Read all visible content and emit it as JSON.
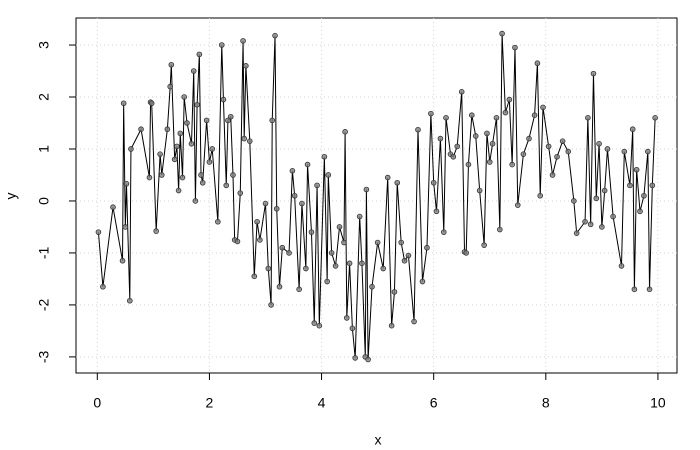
{
  "chart_data": {
    "type": "line",
    "xlabel": "x",
    "ylabel": "y",
    "color": "#000000",
    "marker_color": "#808080",
    "grid": true,
    "xlim": [
      -0.38,
      10.34
    ],
    "xticks": [
      0,
      2,
      4,
      6,
      8,
      10
    ],
    "ylim": [
      -3.31,
      3.52
    ],
    "yticks": [
      -3,
      -2,
      -1,
      0,
      1,
      2,
      3
    ],
    "x": [
      0.02,
      0.1,
      0.28,
      0.45,
      0.47,
      0.5,
      0.52,
      0.58,
      0.6,
      0.78,
      0.93,
      0.95,
      0.97,
      1.05,
      1.12,
      1.15,
      1.25,
      1.3,
      1.32,
      1.38,
      1.42,
      1.45,
      1.48,
      1.52,
      1.55,
      1.6,
      1.68,
      1.72,
      1.75,
      1.78,
      1.82,
      1.85,
      1.88,
      1.95,
      2.0,
      2.05,
      2.15,
      2.22,
      2.25,
      2.3,
      2.33,
      2.38,
      2.42,
      2.45,
      2.5,
      2.55,
      2.6,
      2.62,
      2.65,
      2.72,
      2.8,
      2.85,
      2.9,
      3.0,
      3.05,
      3.1,
      3.12,
      3.17,
      3.2,
      3.25,
      3.3,
      3.42,
      3.48,
      3.52,
      3.6,
      3.65,
      3.72,
      3.75,
      3.82,
      3.87,
      3.92,
      3.96,
      4.05,
      4.1,
      4.12,
      4.18,
      4.25,
      4.32,
      4.4,
      4.42,
      4.45,
      4.5,
      4.55,
      4.6,
      4.68,
      4.72,
      4.78,
      4.8,
      4.83,
      4.9,
      5.0,
      5.1,
      5.18,
      5.25,
      5.3,
      5.35,
      5.42,
      5.48,
      5.55,
      5.65,
      5.72,
      5.8,
      5.88,
      5.95,
      6.0,
      6.05,
      6.12,
      6.18,
      6.22,
      6.3,
      6.35,
      6.42,
      6.5,
      6.55,
      6.58,
      6.62,
      6.68,
      6.75,
      6.82,
      6.9,
      6.95,
      7.0,
      7.05,
      7.12,
      7.18,
      7.22,
      7.28,
      7.35,
      7.4,
      7.45,
      7.5,
      7.6,
      7.7,
      7.8,
      7.85,
      7.9,
      7.95,
      8.05,
      8.12,
      8.2,
      8.3,
      8.4,
      8.5,
      8.55,
      8.7,
      8.75,
      8.8,
      8.85,
      8.9,
      8.95,
      9.0,
      9.05,
      9.1,
      9.2,
      9.35,
      9.4,
      9.5,
      9.55,
      9.58,
      9.62,
      9.68,
      9.75,
      9.82,
      9.85,
      9.9,
      9.95
    ],
    "values": [
      -0.6,
      -1.65,
      -0.12,
      -1.15,
      1.88,
      -0.5,
      0.33,
      -1.92,
      1.0,
      1.38,
      0.45,
      1.9,
      1.88,
      -0.58,
      0.9,
      0.5,
      1.38,
      2.2,
      2.62,
      0.8,
      1.05,
      0.2,
      1.3,
      0.45,
      2.0,
      1.5,
      1.1,
      2.5,
      0.0,
      1.85,
      2.82,
      0.5,
      0.35,
      1.55,
      0.75,
      1.0,
      -0.4,
      3.0,
      1.95,
      0.3,
      1.55,
      1.62,
      0.5,
      -0.75,
      -0.78,
      0.15,
      3.08,
      1.2,
      2.6,
      1.15,
      -1.45,
      -0.4,
      -0.75,
      -0.05,
      -1.3,
      -2.0,
      1.55,
      3.18,
      -0.15,
      -1.65,
      -0.9,
      -1.0,
      0.58,
      0.1,
      -1.7,
      -0.05,
      -1.3,
      0.7,
      -0.6,
      -2.35,
      0.3,
      -2.4,
      0.85,
      -1.55,
      0.5,
      -1.0,
      -1.25,
      -0.5,
      -0.8,
      1.33,
      -2.25,
      -1.2,
      -2.45,
      -3.02,
      -0.3,
      -1.2,
      -3.0,
      0.22,
      -3.05,
      -1.65,
      -0.8,
      -1.3,
      0.45,
      -2.4,
      -1.75,
      0.35,
      -0.8,
      -1.15,
      -1.05,
      -2.32,
      1.37,
      -1.55,
      -0.9,
      1.68,
      0.35,
      -0.2,
      1.2,
      -0.6,
      1.6,
      0.9,
      0.85,
      1.05,
      2.1,
      -0.98,
      -1.0,
      0.7,
      1.65,
      1.25,
      0.2,
      -0.85,
      1.3,
      0.75,
      1.1,
      1.6,
      -0.55,
      3.22,
      1.7,
      1.95,
      0.7,
      2.95,
      -0.08,
      0.9,
      1.2,
      1.65,
      2.65,
      0.1,
      1.8,
      1.05,
      0.5,
      0.85,
      1.15,
      0.95,
      0.0,
      -0.62,
      -0.4,
      1.6,
      -0.45,
      2.45,
      0.05,
      1.1,
      -0.5,
      0.2,
      1.0,
      -0.3,
      -1.25,
      0.95,
      0.3,
      1.38,
      -1.7,
      0.6,
      -0.2,
      0.1,
      0.95,
      -1.7,
      0.3,
      1.6
    ]
  }
}
